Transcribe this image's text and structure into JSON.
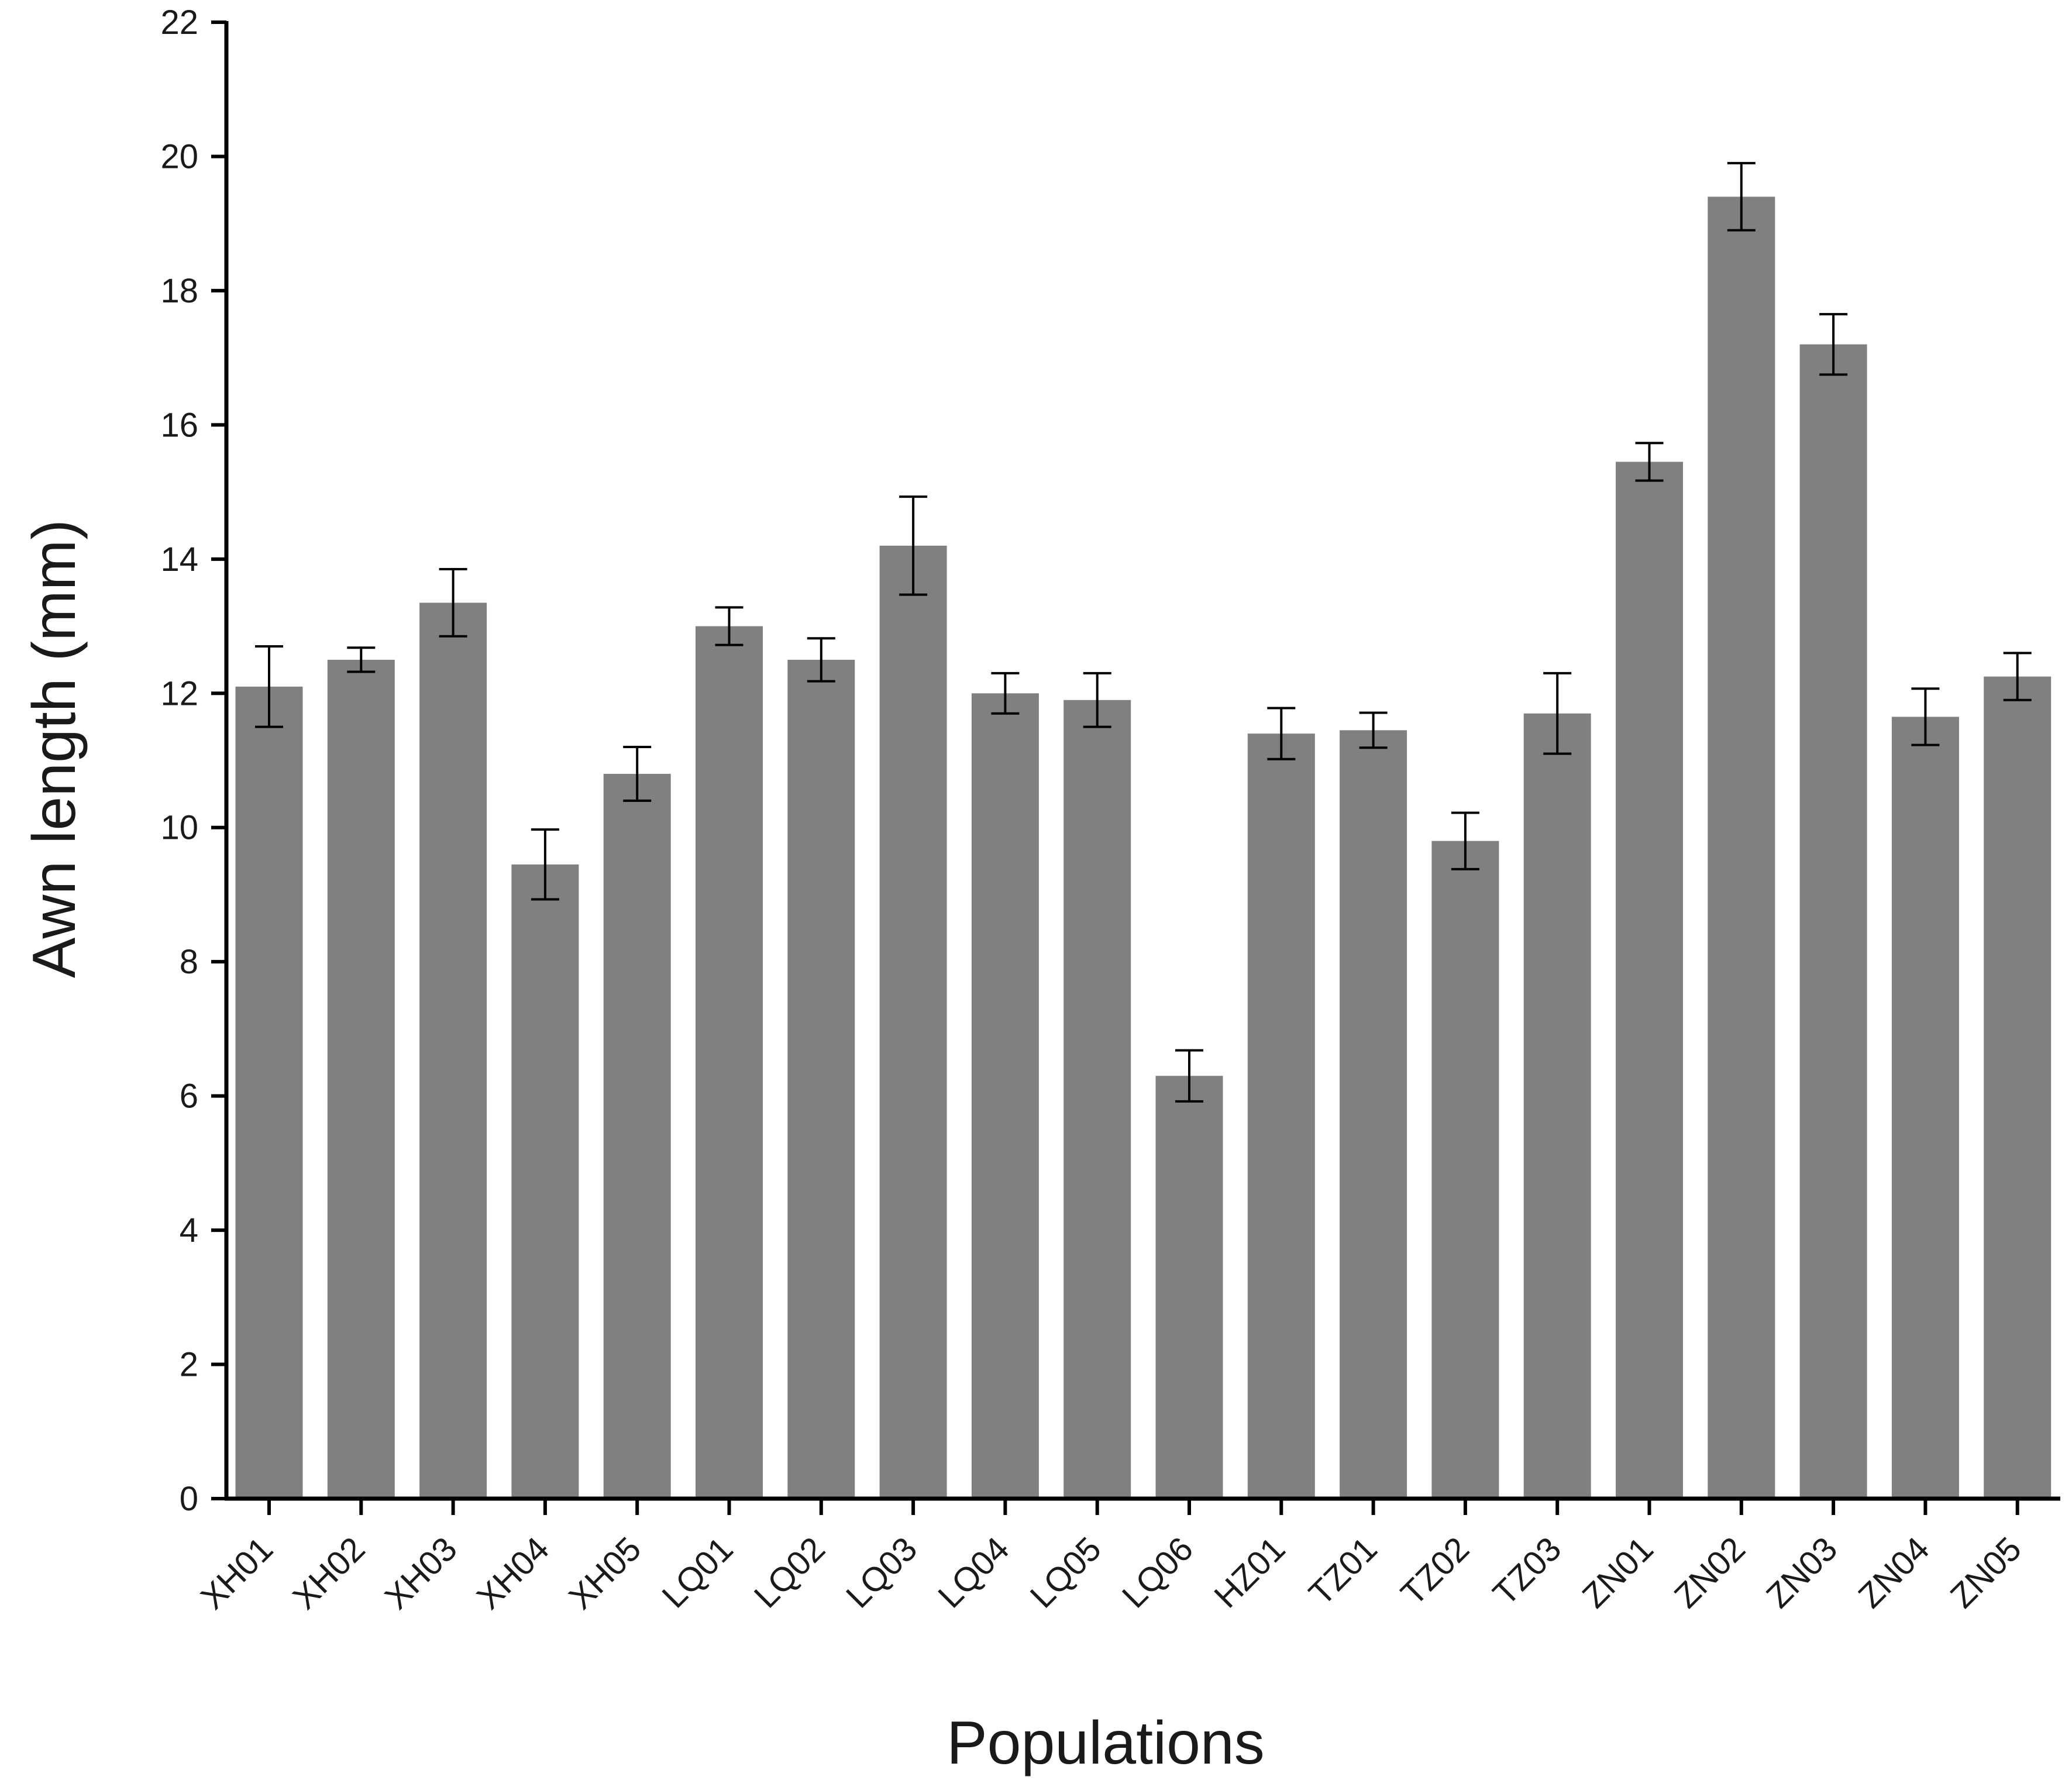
{
  "chart_data": {
    "type": "bar",
    "xlabel": "Populations",
    "ylabel": "Awn length (mm)",
    "ylim": [
      0,
      22
    ],
    "yticks": [
      0,
      2,
      4,
      6,
      8,
      10,
      12,
      14,
      16,
      18,
      20,
      22
    ],
    "grid": false,
    "categories": [
      "XH01",
      "XH02",
      "XH03",
      "XH04",
      "XH05",
      "LQ01",
      "LQ02",
      "LQ03",
      "LQ04",
      "LQ05",
      "LQ06",
      "HZ01",
      "TZ01",
      "TZ02",
      "TZ03",
      "ZN01",
      "ZN02",
      "ZN03",
      "ZN04",
      "ZN05"
    ],
    "values": [
      12.1,
      12.5,
      13.35,
      9.45,
      10.8,
      13.0,
      12.5,
      14.2,
      12.0,
      11.9,
      6.3,
      11.4,
      11.45,
      9.8,
      11.7,
      15.45,
      19.4,
      17.2,
      11.65,
      12.25
    ],
    "errors": [
      0.6,
      0.18,
      0.5,
      0.52,
      0.4,
      0.28,
      0.32,
      0.73,
      0.3,
      0.4,
      0.38,
      0.38,
      0.26,
      0.42,
      0.6,
      0.28,
      0.5,
      0.45,
      0.42,
      0.35
    ],
    "bar_color": "#808080",
    "axis_color": "#000000"
  }
}
